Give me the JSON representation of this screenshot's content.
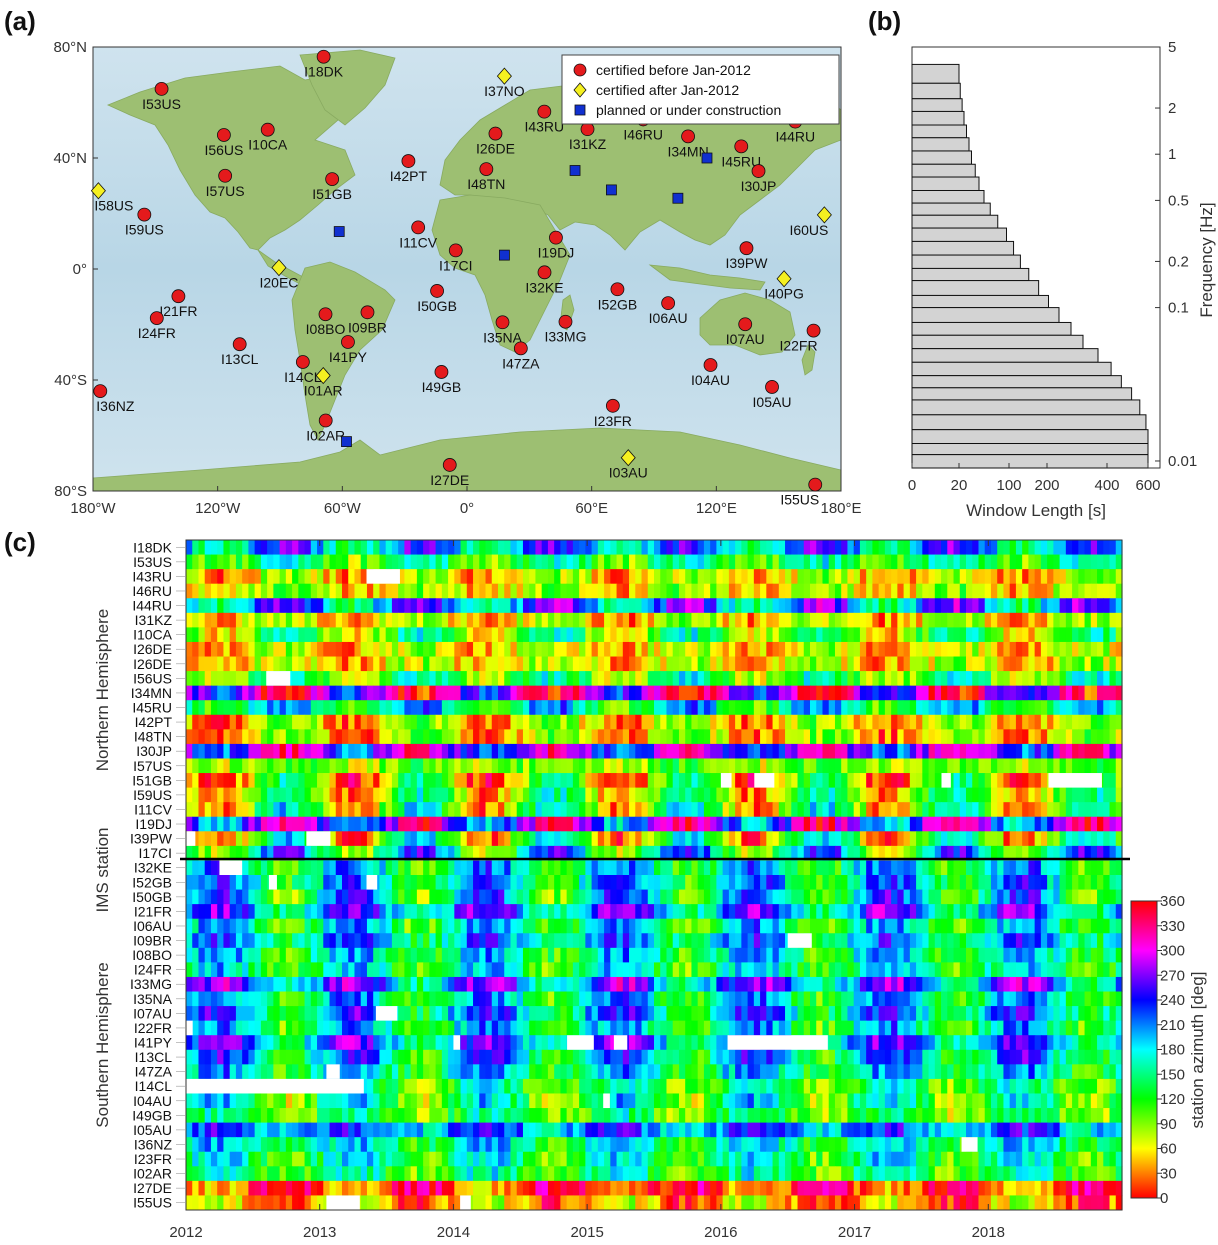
{
  "panels": {
    "a": "(a)",
    "b": "(b)",
    "c": "(c)"
  },
  "chart_data": [
    {
      "id": "a",
      "type": "scatter",
      "xlim": [
        -180,
        180
      ],
      "ylim": [
        -80,
        80
      ],
      "x_ticks": [
        "180°W",
        "120°W",
        "60°W",
        "0°",
        "60°E",
        "120°E",
        "180°E"
      ],
      "x_tick_values": [
        -180,
        -120,
        -60,
        0,
        60,
        120,
        180
      ],
      "y_ticks": [
        "80°N",
        "40°N",
        "0°",
        "40°S",
        "80°S"
      ],
      "y_tick_values": [
        80,
        40,
        0,
        -40,
        -80
      ],
      "legend_position": "top-right",
      "legend": [
        {
          "label": "certified before Jan-2012",
          "marker": "circle",
          "color": "#e41a1c"
        },
        {
          "label": "certified after Jan-2012",
          "marker": "diamond",
          "color": "#f5f020"
        },
        {
          "label": "planned or under construction",
          "marker": "square",
          "color": "#1030d0"
        }
      ],
      "stations": [
        {
          "name": "I18DK",
          "lon": -69,
          "lat": 76.5,
          "group": 0
        },
        {
          "name": "I53US",
          "lon": -147,
          "lat": 64.9,
          "group": 0
        },
        {
          "name": "I56US",
          "lon": -117,
          "lat": 48.3,
          "group": 0
        },
        {
          "name": "I10CA",
          "lon": -95.9,
          "lat": 50.2,
          "group": 0
        },
        {
          "name": "I57US",
          "lon": -116.4,
          "lat": 33.6,
          "group": 0
        },
        {
          "name": "I51GB",
          "lon": -64.9,
          "lat": 32.4,
          "group": 0
        },
        {
          "name": "I59US",
          "lon": -155.3,
          "lat": 19.6,
          "group": 0
        },
        {
          "name": "I42PT",
          "lon": -28.2,
          "lat": 38.9,
          "group": 0
        },
        {
          "name": "I11CV",
          "lon": -23.5,
          "lat": 15.0,
          "group": 0
        },
        {
          "name": "I17CI",
          "lon": -5.4,
          "lat": 6.7,
          "group": 0
        },
        {
          "name": "I26DE",
          "lon": 13.7,
          "lat": 48.8,
          "group": 0
        },
        {
          "name": "I48TN",
          "lon": 9.3,
          "lat": 36.0,
          "group": 0
        },
        {
          "name": "I43RU",
          "lon": 37.2,
          "lat": 56.7,
          "group": 0
        },
        {
          "name": "I31KZ",
          "lon": 58.0,
          "lat": 50.4,
          "group": 0
        },
        {
          "name": "I46RU",
          "lon": 84.8,
          "lat": 53.9,
          "group": 0
        },
        {
          "name": "I34MN",
          "lon": 106.4,
          "lat": 47.8,
          "group": 0
        },
        {
          "name": "I45RU",
          "lon": 132.0,
          "lat": 44.2,
          "group": 0
        },
        {
          "name": "I44RU",
          "lon": 158.0,
          "lat": 53.1,
          "group": 0
        },
        {
          "name": "I30JP",
          "lon": 140.3,
          "lat": 35.3,
          "group": 0
        },
        {
          "name": "I19DJ",
          "lon": 42.8,
          "lat": 11.3,
          "group": 0
        },
        {
          "name": "I39PW",
          "lon": 134.5,
          "lat": 7.5,
          "group": 0
        },
        {
          "name": "I32KE",
          "lon": 37.3,
          "lat": -1.2,
          "group": 0
        },
        {
          "name": "I52GB",
          "lon": 72.4,
          "lat": -7.3,
          "group": 0
        },
        {
          "name": "I06AU",
          "lon": 96.8,
          "lat": -12.3,
          "group": 0
        },
        {
          "name": "I21FR",
          "lon": -138.9,
          "lat": -9.8,
          "group": 0
        },
        {
          "name": "I24FR",
          "lon": -149.3,
          "lat": -17.7,
          "group": 0
        },
        {
          "name": "I13CL",
          "lon": -109.4,
          "lat": -27.1,
          "group": 0
        },
        {
          "name": "I50GB",
          "lon": -14.4,
          "lat": -7.9,
          "group": 0
        },
        {
          "name": "I09BR",
          "lon": -47.9,
          "lat": -15.6,
          "group": 0
        },
        {
          "name": "I08BO",
          "lon": -68.1,
          "lat": -16.3,
          "group": 0
        },
        {
          "name": "I41PY",
          "lon": -57.3,
          "lat": -26.3,
          "group": 0
        },
        {
          "name": "I14CL",
          "lon": -79.0,
          "lat": -33.5,
          "group": 0
        },
        {
          "name": "I35NA",
          "lon": 17.1,
          "lat": -19.2,
          "group": 0
        },
        {
          "name": "I47ZA",
          "lon": 25.9,
          "lat": -28.6,
          "group": 0
        },
        {
          "name": "I33MG",
          "lon": 47.4,
          "lat": -19.0,
          "group": 0
        },
        {
          "name": "I07AU",
          "lon": 133.9,
          "lat": -19.9,
          "group": 0
        },
        {
          "name": "I04AU",
          "lon": 117.2,
          "lat": -34.6,
          "group": 0
        },
        {
          "name": "I05AU",
          "lon": 146.8,
          "lat": -42.5,
          "group": 0
        },
        {
          "name": "I22FR",
          "lon": 166.8,
          "lat": -22.2,
          "group": 0
        },
        {
          "name": "I36NZ",
          "lon": -176.5,
          "lat": -44.0,
          "group": 0
        },
        {
          "name": "I49GB",
          "lon": -12.3,
          "lat": -37.1,
          "group": 0
        },
        {
          "name": "I23FR",
          "lon": 70.2,
          "lat": -49.3,
          "group": 0
        },
        {
          "name": "I02AR",
          "lon": -68.0,
          "lat": -54.6,
          "group": 0
        },
        {
          "name": "I27DE",
          "lon": -8.3,
          "lat": -70.6,
          "group": 0
        },
        {
          "name": "I55US",
          "lon": 167.6,
          "lat": -77.7,
          "group": 0
        },
        {
          "name": "I37NO",
          "lon": 18.0,
          "lat": 69.5,
          "group": 1
        },
        {
          "name": "I58US",
          "lon": -177.4,
          "lat": 28.2,
          "group": 1
        },
        {
          "name": "I60US",
          "lon": 172.0,
          "lat": 19.5,
          "group": 1
        },
        {
          "name": "I20EC",
          "lon": -90.5,
          "lat": 0.5,
          "group": 1
        },
        {
          "name": "I40PG",
          "lon": 152.6,
          "lat": -3.5,
          "group": 1
        },
        {
          "name": "I01AR",
          "lon": -69.2,
          "lat": -38.4,
          "group": 1
        },
        {
          "name": "I03AU",
          "lon": 77.6,
          "lat": -68.0,
          "group": 1
        },
        {
          "name": "",
          "lon": -61.5,
          "lat": 13.5,
          "group": 2
        },
        {
          "name": "",
          "lon": 18.0,
          "lat": 5.0,
          "group": 2
        },
        {
          "name": "",
          "lon": 52.0,
          "lat": 35.5,
          "group": 2
        },
        {
          "name": "",
          "lon": 69.5,
          "lat": 28.5,
          "group": 2
        },
        {
          "name": "",
          "lon": 101.5,
          "lat": 25.5,
          "group": 2
        },
        {
          "name": "",
          "lon": 115.5,
          "lat": 40.0,
          "group": 2
        },
        {
          "name": "",
          "lon": -58.0,
          "lat": -62.2,
          "group": 2
        }
      ]
    },
    {
      "id": "b",
      "type": "bar",
      "orientation": "horizontal",
      "xlabel": "Window Length [s]",
      "ylabel": "Frequency [Hz]",
      "x_ticks": [
        "0",
        "20",
        "100",
        "200",
        "400",
        "600"
      ],
      "y_ticks": [
        "0.01",
        "0.1",
        "0.2",
        "0.5",
        "1",
        "2",
        "5"
      ],
      "bands": [
        {
          "f_low": 2.9,
          "f_high": 3.85,
          "window": 20
        },
        {
          "f_low": 2.3,
          "f_high": 2.9,
          "window": 22
        },
        {
          "f_low": 1.9,
          "f_high": 2.3,
          "window": 25
        },
        {
          "f_low": 1.55,
          "f_high": 1.9,
          "window": 28
        },
        {
          "f_low": 1.28,
          "f_high": 1.55,
          "window": 32
        },
        {
          "f_low": 1.05,
          "f_high": 1.28,
          "window": 36
        },
        {
          "f_low": 0.86,
          "f_high": 1.05,
          "window": 40
        },
        {
          "f_low": 0.71,
          "f_high": 0.86,
          "window": 46
        },
        {
          "f_low": 0.58,
          "f_high": 0.71,
          "window": 52
        },
        {
          "f_low": 0.48,
          "f_high": 0.58,
          "window": 60
        },
        {
          "f_low": 0.4,
          "f_high": 0.48,
          "window": 70
        },
        {
          "f_low": 0.33,
          "f_high": 0.4,
          "window": 82
        },
        {
          "f_low": 0.27,
          "f_high": 0.33,
          "window": 96
        },
        {
          "f_low": 0.22,
          "f_high": 0.27,
          "window": 112
        },
        {
          "f_low": 0.18,
          "f_high": 0.22,
          "window": 130
        },
        {
          "f_low": 0.15,
          "f_high": 0.18,
          "window": 152
        },
        {
          "f_low": 0.12,
          "f_high": 0.15,
          "window": 178
        },
        {
          "f_low": 0.1,
          "f_high": 0.12,
          "window": 205
        },
        {
          "f_low": 0.08,
          "f_high": 0.1,
          "window": 240
        },
        {
          "f_low": 0.066,
          "f_high": 0.08,
          "window": 280
        },
        {
          "f_low": 0.054,
          "f_high": 0.066,
          "window": 320
        },
        {
          "f_low": 0.044,
          "f_high": 0.054,
          "window": 370
        },
        {
          "f_low": 0.036,
          "f_high": 0.044,
          "window": 420
        },
        {
          "f_low": 0.03,
          "f_high": 0.036,
          "window": 470
        },
        {
          "f_low": 0.025,
          "f_high": 0.03,
          "window": 520
        },
        {
          "f_low": 0.02,
          "f_high": 0.025,
          "window": 560
        },
        {
          "f_low": 0.016,
          "f_high": 0.02,
          "window": 590
        },
        {
          "f_low": 0.013,
          "f_high": 0.016,
          "window": 600
        },
        {
          "f_low": 0.011,
          "f_high": 0.013,
          "window": 600
        },
        {
          "f_low": 0.009,
          "f_high": 0.011,
          "window": 600
        }
      ]
    },
    {
      "id": "c",
      "type": "heatmap",
      "ylabel": "IMS station",
      "x_ticks": [
        "2012",
        "2013",
        "2014",
        "2015",
        "2016",
        "2017",
        "2018"
      ],
      "xlim": [
        2012,
        2019
      ],
      "groups": [
        "Northern Hemisphere",
        "Southern Hemisphere"
      ],
      "colorbar_label": "station azimuth [deg]",
      "colorbar_ticks": [
        "0",
        "30",
        "60",
        "90",
        "120",
        "150",
        "180",
        "210",
        "240",
        "270",
        "300",
        "330",
        "360"
      ],
      "colormap": "hsv",
      "northern_rows": [
        "I18DK",
        "I53US",
        "I43RU",
        "I46RU",
        "I44RU",
        "I31KZ",
        "I10CA",
        "I26DE",
        "I26DE",
        "I56US",
        "I34MN",
        "I45RU",
        "I42PT",
        "I48TN",
        "I30JP",
        "I57US",
        "I51GB",
        "I59US",
        "I11CV",
        "I19DJ",
        "I39PW",
        "I17CI"
      ],
      "southern_rows": [
        "I32KE",
        "I52GB",
        "I50GB",
        "I21FR",
        "I06AU",
        "I09BR",
        "I08BO",
        "I24FR",
        "I33MG",
        "I35NA",
        "I07AU",
        "I22FR",
        "I41PY",
        "I13CL",
        "I47ZA",
        "I14CL",
        "I04AU",
        "I49GB",
        "I05AU",
        "I36NZ",
        "I23FR",
        "I02AR",
        "I27DE",
        "I55US"
      ],
      "base_azimuth": [
        160,
        230,
        300,
        290,
        150,
        300,
        250,
        300,
        300,
        240,
        60,
        200,
        300,
        300,
        90,
        265,
        285,
        265,
        255,
        100,
        255,
        200,
        195,
        185,
        190,
        150,
        205,
        175,
        200,
        210,
        140,
        195,
        170,
        200,
        150,
        180,
        195,
        230,
        225,
        240,
        150,
        200,
        215,
        225,
        350,
        320
      ],
      "seasonal_amplitude": [
        60,
        40,
        30,
        30,
        70,
        30,
        60,
        25,
        25,
        50,
        70,
        60,
        40,
        40,
        60,
        20,
        80,
        70,
        80,
        80,
        90,
        90,
        60,
        60,
        80,
        70,
        60,
        50,
        50,
        50,
        70,
        60,
        60,
        60,
        60,
        70,
        50,
        40,
        60,
        40,
        30,
        40,
        45,
        40,
        40,
        40
      ],
      "gaps": [
        {
          "row": "I43RU",
          "start": 2013.35,
          "end": 2013.6
        },
        {
          "row": "I56US",
          "start": 2012.6,
          "end": 2012.78
        },
        {
          "row": "I51GB",
          "start": 2016.0,
          "end": 2016.08
        },
        {
          "row": "I51GB",
          "start": 2016.25,
          "end": 2016.4
        },
        {
          "row": "I51GB",
          "start": 2017.65,
          "end": 2017.72
        },
        {
          "row": "I51GB",
          "start": 2018.45,
          "end": 2018.85
        },
        {
          "row": "I39PW",
          "start": 2012.0,
          "end": 2012.07
        },
        {
          "row": "I39PW",
          "start": 2012.9,
          "end": 2013.08
        },
        {
          "row": "I32KE",
          "start": 2012.25,
          "end": 2012.42
        },
        {
          "row": "I52GB",
          "start": 2012.62,
          "end": 2012.68
        },
        {
          "row": "I52GB",
          "start": 2013.35,
          "end": 2013.43
        },
        {
          "row": "I09BR",
          "start": 2016.5,
          "end": 2016.68
        },
        {
          "row": "I07AU",
          "start": 2013.42,
          "end": 2013.58
        },
        {
          "row": "I22FR",
          "start": 2012.0,
          "end": 2012.05
        },
        {
          "row": "I41PY",
          "start": 2014.0,
          "end": 2014.05
        },
        {
          "row": "I41PY",
          "start": 2014.85,
          "end": 2015.05
        },
        {
          "row": "I41PY",
          "start": 2015.2,
          "end": 2015.3
        },
        {
          "row": "I41PY",
          "start": 2016.05,
          "end": 2016.8
        },
        {
          "row": "I47ZA",
          "start": 2013.05,
          "end": 2013.15
        },
        {
          "row": "I14CL",
          "start": 2012.0,
          "end": 2013.33
        },
        {
          "row": "I04AU",
          "start": 2015.12,
          "end": 2015.17
        },
        {
          "row": "I36NZ",
          "start": 2017.8,
          "end": 2017.92
        },
        {
          "row": "I55US",
          "start": 2013.05,
          "end": 2013.3
        },
        {
          "row": "I55US",
          "start": 2014.05,
          "end": 2014.13
        }
      ]
    }
  ]
}
